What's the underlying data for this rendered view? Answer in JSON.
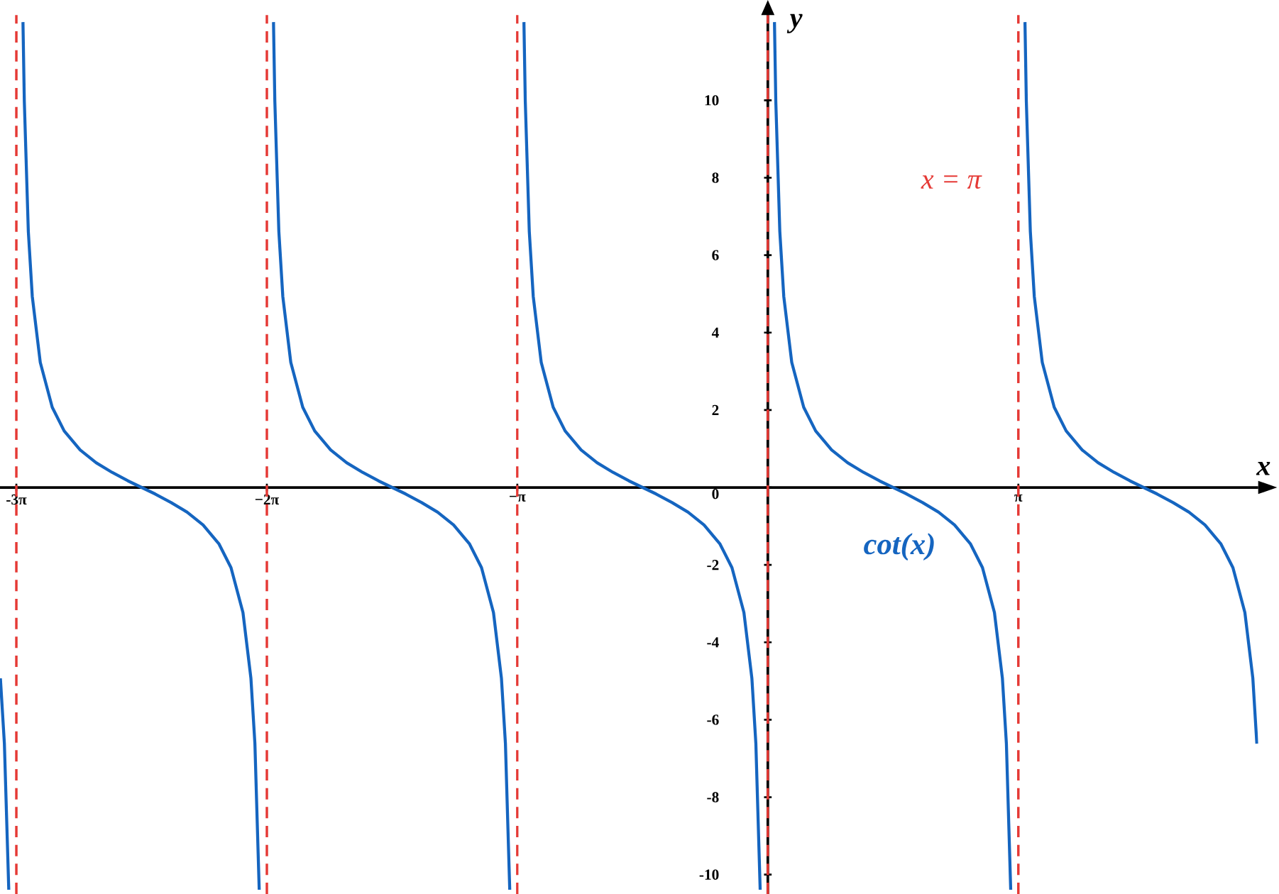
{
  "chart_data": {
    "type": "line",
    "xlabel": "x",
    "ylabel": "y",
    "xlim": [
      -9.63,
      6.15
    ],
    "ylim": [
      -10.5,
      12.2
    ],
    "xticks": [
      {
        "value": -9.425,
        "label": "-3π"
      },
      {
        "value": -6.283,
        "label": "−2π"
      },
      {
        "value": -3.142,
        "label": "−π"
      },
      {
        "value": 3.142,
        "label": "π"
      }
    ],
    "yticks": [
      -10,
      -8,
      -6,
      -4,
      -2,
      0,
      2,
      4,
      6,
      8,
      10
    ],
    "marker": "none",
    "line_style": "solid",
    "series": [
      {
        "name": "cot(x)",
        "color": "#1565c0",
        "x": [
          -9.625,
          -9.575,
          -9.52,
          -9.425,
          -9.342,
          -9.325,
          -9.275,
          -9.225,
          -9.125,
          -8.975,
          -8.825,
          -8.625,
          -8.425,
          -8.225,
          -8.025,
          -7.854,
          -7.683,
          -7.483,
          -7.283,
          -7.083,
          -6.883,
          -6.733,
          -6.583,
          -6.483,
          -6.433,
          -6.379,
          -6.283,
          -6.2,
          -6.183,
          -6.133,
          -6.083,
          -5.983,
          -5.833,
          -5.683,
          -5.483,
          -5.283,
          -5.083,
          -4.883,
          -4.712,
          -4.541,
          -4.341,
          -4.141,
          -3.941,
          -3.741,
          -3.591,
          -3.441,
          -3.341,
          -3.291,
          -3.237,
          -3.142,
          -3.059,
          -3.042,
          -2.992,
          -2.942,
          -2.842,
          -2.692,
          -2.542,
          -2.342,
          -2.142,
          -1.942,
          -1.742,
          -1.571,
          -1.4,
          -1.2,
          -1.0,
          -0.8,
          -0.6,
          -0.45,
          -0.3,
          -0.2,
          -0.15,
          -0.096,
          0,
          0.083,
          0.1,
          0.15,
          0.2,
          0.3,
          0.45,
          0.6,
          0.8,
          1.0,
          1.2,
          1.4,
          1.571,
          1.742,
          1.942,
          2.142,
          2.342,
          2.542,
          2.692,
          2.842,
          2.942,
          2.992,
          3.046,
          3.142,
          3.225,
          3.242,
          3.292,
          3.342,
          3.442,
          3.592,
          3.742,
          3.942,
          4.142,
          4.342,
          4.542,
          4.712,
          4.883,
          5.083,
          5.283,
          5.483,
          5.683,
          5.833,
          5.983,
          6.083,
          6.133
        ],
        "values": [
          -4.93,
          -6.62,
          -10.39,
          null,
          12.02,
          9.97,
          6.62,
          4.93,
          3.23,
          2.07,
          1.46,
          0.97,
          0.64,
          0.39,
          0.17,
          0,
          -0.17,
          -0.39,
          -0.64,
          -0.97,
          -1.46,
          -2.07,
          -3.23,
          -4.93,
          -6.62,
          -10.39,
          null,
          12.02,
          9.97,
          6.62,
          4.93,
          3.23,
          2.07,
          1.46,
          0.97,
          0.64,
          0.39,
          0.17,
          0,
          -0.17,
          -0.39,
          -0.64,
          -0.97,
          -1.46,
          -2.07,
          -3.23,
          -4.93,
          -6.62,
          -10.39,
          null,
          12.02,
          9.97,
          6.62,
          4.93,
          3.23,
          2.07,
          1.46,
          0.97,
          0.64,
          0.39,
          0.17,
          0,
          -0.17,
          -0.39,
          -0.64,
          -0.97,
          -1.46,
          -2.07,
          -3.23,
          -4.93,
          -6.62,
          -10.39,
          null,
          12.02,
          9.97,
          6.62,
          4.93,
          3.23,
          2.07,
          1.46,
          0.97,
          0.64,
          0.39,
          0.17,
          0,
          -0.17,
          -0.39,
          -0.64,
          -0.97,
          -1.46,
          -2.07,
          -3.23,
          -4.93,
          -6.62,
          -10.39,
          null,
          12.02,
          9.97,
          6.62,
          4.93,
          3.23,
          2.07,
          1.46,
          0.97,
          0.64,
          0.39,
          0.17,
          0,
          -0.17,
          -0.39,
          -0.64,
          -0.97,
          -1.46,
          -2.07,
          -3.23,
          -4.93,
          -6.62
        ]
      }
    ],
    "ref_lines": [
      {
        "axis": "x",
        "value": -9.425,
        "color": "#e53935",
        "line_style": "dashed"
      },
      {
        "axis": "x",
        "value": -6.283,
        "color": "#e53935",
        "line_style": "dashed"
      },
      {
        "axis": "x",
        "value": -3.142,
        "color": "#e53935",
        "line_style": "dashed"
      },
      {
        "axis": "x",
        "value": 0,
        "color": "#e53935",
        "line_style": "dashed"
      },
      {
        "axis": "x",
        "value": 3.142,
        "color": "#e53935",
        "line_style": "dashed",
        "label": "x =  π"
      }
    ]
  }
}
